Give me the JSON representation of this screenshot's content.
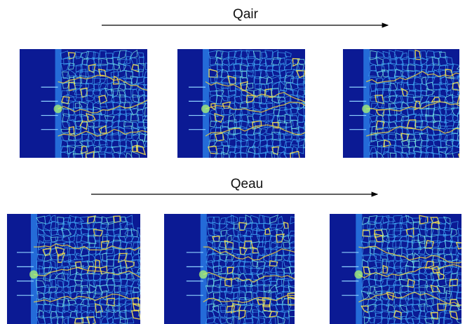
{
  "top_arrow": {
    "label": "Qair"
  },
  "bottom_arrow": {
    "label": "Qeau"
  }
}
